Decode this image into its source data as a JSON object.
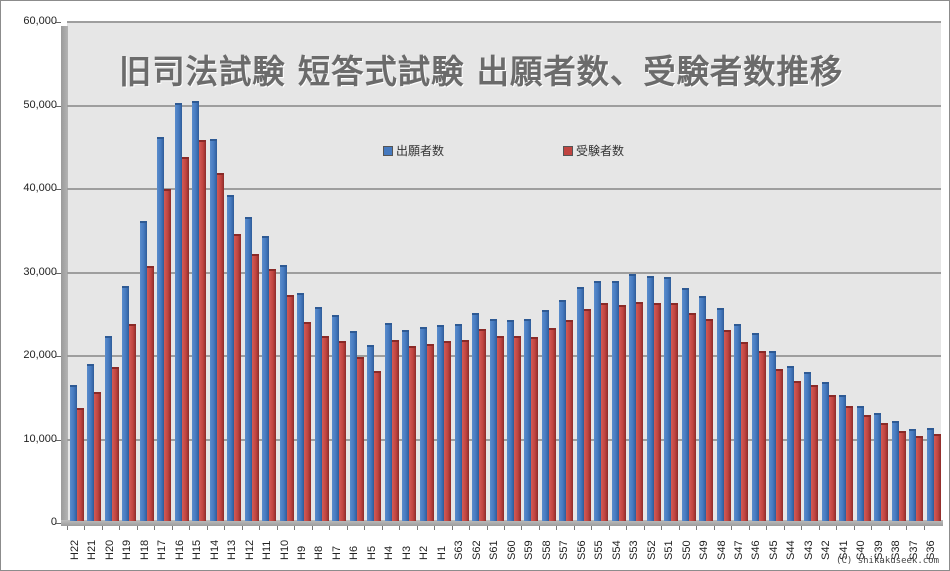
{
  "chart_data": {
    "type": "bar",
    "title": "旧司法試験 短答式試験 出願者数、受験者数推移",
    "xlabel": "",
    "ylabel": "",
    "ylim": [
      0,
      60000
    ],
    "yticks": [
      "0",
      "10,000",
      "20,000",
      "30,000",
      "40,000",
      "50,000",
      "60,000"
    ],
    "grid": true,
    "legend_position": "top-center-inside",
    "categories": [
      "H22",
      "H21",
      "H20",
      "H19",
      "H18",
      "H17",
      "H16",
      "H15",
      "H14",
      "H13",
      "H12",
      "H11",
      "H10",
      "H9",
      "H8",
      "H7",
      "H6",
      "H5",
      "H4",
      "H3",
      "H2",
      "H1",
      "S63",
      "S62",
      "S61",
      "S60",
      "S59",
      "S58",
      "S57",
      "S56",
      "S55",
      "S54",
      "S53",
      "S52",
      "S51",
      "S50",
      "S49",
      "S48",
      "S47",
      "S46",
      "S45",
      "S44",
      "S43",
      "S42",
      "S41",
      "S40",
      "S39",
      "S38",
      "S37",
      "S36"
    ],
    "series": [
      {
        "name": "出願者数",
        "color": "#4579bf",
        "values": [
          16300,
          18800,
          22200,
          28100,
          35900,
          46000,
          50100,
          50300,
          45700,
          39000,
          36400,
          34100,
          30700,
          27300,
          25600,
          24700,
          22800,
          21100,
          23700,
          22900,
          23200,
          23500,
          23600,
          24900,
          24200,
          24100,
          24200,
          25300,
          26500,
          28000,
          28700,
          28700,
          29600,
          29300,
          29200,
          27900,
          26900,
          25500,
          23600,
          22500,
          20400,
          18600,
          17800,
          16600,
          15100,
          13800,
          12900,
          12000,
          11000,
          11100
        ]
      },
      {
        "name": "受験者数",
        "color": "#c04440",
        "values": [
          13500,
          15400,
          18400,
          23600,
          30500,
          39800,
          43600,
          45600,
          41700,
          34400,
          32000,
          30200,
          27100,
          23800,
          22200,
          21600,
          19600,
          18000,
          21700,
          21000,
          21200,
          21600,
          21700,
          23000,
          22200,
          22200,
          22000,
          23100,
          24100,
          25400,
          26100,
          25900,
          26200,
          26100,
          26100,
          24900,
          24200,
          22900,
          21400,
          20400,
          18200,
          16800,
          16300,
          15100,
          13800,
          12700,
          11700,
          10800,
          10200,
          10400
        ]
      }
    ],
    "annotations": [
      "(C) shikakuseek.com"
    ]
  },
  "legend": {
    "applicants": "出願者数",
    "examinees": "受験者数"
  },
  "copyright": "(C) shikakuseek.com"
}
